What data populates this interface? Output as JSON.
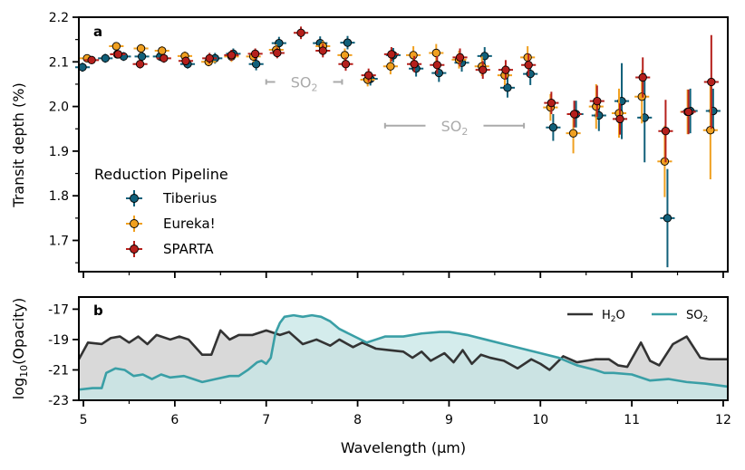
{
  "chart_data": [
    {
      "type": "scatter",
      "panel": "a",
      "ylabel": "Transit depth (%)",
      "xlim": [
        4.95,
        12.05
      ],
      "ylim": [
        1.63,
        2.2
      ],
      "xticks": [
        5,
        6,
        7,
        8,
        9,
        10,
        11,
        12
      ],
      "yticks": [
        1.7,
        1.8,
        1.9,
        2.0,
        2.1,
        2.2
      ],
      "ytick_labels": [
        "1.7",
        "1.8",
        "1.9",
        "2.0",
        "2.1",
        "2.2"
      ],
      "legend": {
        "title": "Reduction Pipeline",
        "placement": "lower-left"
      },
      "annotations": [
        {
          "label": "SO",
          "sub": "2",
          "x_range": [
            7.0,
            7.83
          ],
          "y": 2.055
        },
        {
          "label": "SO",
          "sub": "2",
          "x_range": [
            8.3,
            9.82
          ],
          "y": 1.957
        }
      ],
      "series": [
        {
          "name": "Tiberius",
          "color": "#11607a",
          "x": [
            4.99,
            5.24,
            5.44,
            5.64,
            5.84,
            6.14,
            6.44,
            6.64,
            6.89,
            7.14,
            7.59,
            7.89,
            8.14,
            8.39,
            8.64,
            8.89,
            9.14,
            9.39,
            9.64,
            9.89,
            10.14,
            10.39,
            10.64,
            10.89,
            11.14,
            11.39,
            11.64,
            11.89
          ],
          "y": [
            2.088,
            2.108,
            2.112,
            2.112,
            2.112,
            2.095,
            2.108,
            2.118,
            2.095,
            2.142,
            2.142,
            2.143,
            2.062,
            2.115,
            2.085,
            2.075,
            2.098,
            2.113,
            2.042,
            2.073,
            1.953,
            1.983,
            1.98,
            2.012,
            1.975,
            1.75,
            1.99,
            1.99
          ],
          "yerr": [
            0.01,
            0.01,
            0.01,
            0.01,
            0.01,
            0.01,
            0.012,
            0.012,
            0.014,
            0.014,
            0.015,
            0.015,
            0.015,
            0.016,
            0.018,
            0.02,
            0.02,
            0.02,
            0.022,
            0.025,
            0.03,
            0.03,
            0.035,
            0.085,
            0.1,
            0.11,
            0.05,
            0.05
          ]
        },
        {
          "name": "Eureka!",
          "color": "#f0a020",
          "x": [
            5.04,
            5.36,
            5.63,
            5.86,
            6.11,
            6.37,
            6.62,
            6.86,
            7.11,
            7.62,
            7.86,
            8.11,
            8.36,
            8.61,
            8.86,
            9.11,
            9.36,
            9.61,
            9.86,
            10.11,
            10.36,
            10.61,
            10.86,
            11.11,
            11.36,
            11.61,
            11.86
          ],
          "y": [
            2.108,
            2.135,
            2.13,
            2.125,
            2.113,
            2.1,
            2.112,
            2.112,
            2.127,
            2.135,
            2.115,
            2.06,
            2.09,
            2.115,
            2.12,
            2.105,
            2.09,
            2.07,
            2.11,
            1.998,
            1.94,
            2.0,
            1.985,
            2.022,
            1.877,
            1.988,
            1.947
          ],
          "yerr": [
            0.008,
            0.008,
            0.01,
            0.01,
            0.01,
            0.01,
            0.012,
            0.012,
            0.012,
            0.012,
            0.015,
            0.015,
            0.018,
            0.02,
            0.02,
            0.02,
            0.022,
            0.022,
            0.025,
            0.03,
            0.045,
            0.05,
            0.055,
            0.06,
            0.08,
            0.05,
            0.11
          ]
        },
        {
          "name": "SPARTA",
          "color": "#b5201c",
          "x": [
            5.09,
            5.37,
            5.38,
            5.62,
            5.88,
            6.12,
            6.38,
            6.62,
            6.88,
            7.12,
            7.38,
            7.62,
            7.87,
            8.12,
            8.37,
            8.62,
            8.87,
            9.12,
            9.37,
            9.62,
            9.87,
            10.12,
            10.37,
            10.62,
            10.87,
            11.12,
            11.37,
            11.62,
            11.87
          ],
          "y": [
            2.104,
            2.117,
            2.117,
            2.095,
            2.108,
            2.102,
            2.108,
            2.115,
            2.118,
            2.12,
            2.165,
            2.125,
            2.095,
            2.07,
            2.117,
            2.095,
            2.093,
            2.11,
            2.082,
            2.082,
            2.093,
            2.008,
            1.983,
            2.012,
            1.972,
            2.065,
            1.945,
            1.988,
            2.055
          ],
          "yerr": [
            0.008,
            0.008,
            0.008,
            0.01,
            0.01,
            0.01,
            0.012,
            0.012,
            0.012,
            0.012,
            0.014,
            0.015,
            0.015,
            0.015,
            0.016,
            0.018,
            0.02,
            0.02,
            0.02,
            0.022,
            0.025,
            0.025,
            0.03,
            0.035,
            0.035,
            0.045,
            0.07,
            0.05,
            0.105
          ]
        }
      ]
    },
    {
      "type": "area",
      "panel": "b",
      "ylabel": "log",
      "ylabel_sub": "10",
      "ylabel_rest": "(Opacity)",
      "xlabel": "Wavelength (μm)",
      "xlim": [
        4.95,
        12.05
      ],
      "ylim": [
        -23,
        -16.2
      ],
      "xticks": [
        5,
        6,
        7,
        8,
        9,
        10,
        11,
        12
      ],
      "xtick_labels": [
        "5",
        "6",
        "7",
        "8",
        "9",
        "10",
        "11",
        "12"
      ],
      "yticks": [
        -23,
        -21,
        -19,
        -17
      ],
      "ytick_labels": [
        "-23",
        "-21",
        "-19",
        "-17"
      ],
      "legend": {
        "placement": "top-right"
      },
      "series": [
        {
          "name": "H",
          "name_sub": "2",
          "name_rest": "O",
          "color": "#333333",
          "fill": "#d9d9d9",
          "x": [
            4.95,
            5.05,
            5.2,
            5.3,
            5.4,
            5.5,
            5.6,
            5.7,
            5.8,
            5.95,
            6.05,
            6.15,
            6.3,
            6.4,
            6.5,
            6.6,
            6.7,
            6.85,
            7.0,
            7.15,
            7.25,
            7.4,
            7.55,
            7.7,
            7.8,
            7.95,
            8.05,
            8.2,
            8.35,
            8.5,
            8.6,
            8.7,
            8.8,
            8.95,
            9.05,
            9.15,
            9.25,
            9.35,
            9.45,
            9.6,
            9.75,
            9.9,
            10.0,
            10.1,
            10.25,
            10.4,
            10.6,
            10.75,
            10.85,
            10.95,
            11.1,
            11.2,
            11.3,
            11.45,
            11.6,
            11.75,
            11.85,
            12.05
          ],
          "y": [
            -20.3,
            -19.2,
            -19.3,
            -18.9,
            -18.8,
            -19.2,
            -18.8,
            -19.3,
            -18.7,
            -19.0,
            -18.8,
            -19.0,
            -20.0,
            -20.0,
            -18.4,
            -19.0,
            -18.7,
            -18.7,
            -18.4,
            -18.7,
            -18.5,
            -19.3,
            -19.0,
            -19.4,
            -19.0,
            -19.5,
            -19.2,
            -19.6,
            -19.7,
            -19.8,
            -20.2,
            -19.8,
            -20.4,
            -19.9,
            -20.5,
            -19.7,
            -20.6,
            -20.0,
            -20.2,
            -20.4,
            -20.9,
            -20.3,
            -20.6,
            -21.0,
            -20.1,
            -20.5,
            -20.3,
            -20.3,
            -20.7,
            -20.8,
            -19.2,
            -20.4,
            -20.7,
            -19.3,
            -18.8,
            -20.2,
            -20.3,
            -20.3
          ]
        },
        {
          "name": "SO",
          "name_sub": "2",
          "name_rest": "",
          "color": "#3a9fa6",
          "fill": "#c6e6e6",
          "x": [
            4.95,
            5.1,
            5.2,
            5.25,
            5.35,
            5.45,
            5.55,
            5.65,
            5.75,
            5.85,
            5.95,
            6.1,
            6.2,
            6.3,
            6.45,
            6.6,
            6.7,
            6.8,
            6.9,
            6.95,
            7.0,
            7.05,
            7.1,
            7.15,
            7.2,
            7.3,
            7.4,
            7.5,
            7.6,
            7.7,
            7.8,
            7.9,
            8.0,
            8.1,
            8.2,
            8.3,
            8.5,
            8.7,
            8.9,
            9.0,
            9.1,
            9.2,
            9.4,
            9.6,
            9.8,
            10.0,
            10.2,
            10.4,
            10.6,
            10.7,
            10.8,
            11.0,
            11.2,
            11.4,
            11.6,
            11.8,
            12.05
          ],
          "y": [
            -22.3,
            -22.2,
            -22.2,
            -21.2,
            -20.9,
            -21.0,
            -21.4,
            -21.3,
            -21.6,
            -21.3,
            -21.5,
            -21.4,
            -21.6,
            -21.8,
            -21.6,
            -21.4,
            -21.4,
            -21.0,
            -20.5,
            -20.4,
            -20.6,
            -20.2,
            -18.6,
            -17.9,
            -17.5,
            -17.4,
            -17.5,
            -17.4,
            -17.5,
            -17.8,
            -18.3,
            -18.6,
            -18.9,
            -19.2,
            -19.0,
            -18.8,
            -18.8,
            -18.6,
            -18.5,
            -18.5,
            -18.6,
            -18.7,
            -19.0,
            -19.3,
            -19.6,
            -19.9,
            -20.2,
            -20.7,
            -21.0,
            -21.2,
            -21.2,
            -21.3,
            -21.7,
            -21.6,
            -21.8,
            -21.9,
            -22.1
          ]
        }
      ]
    }
  ]
}
